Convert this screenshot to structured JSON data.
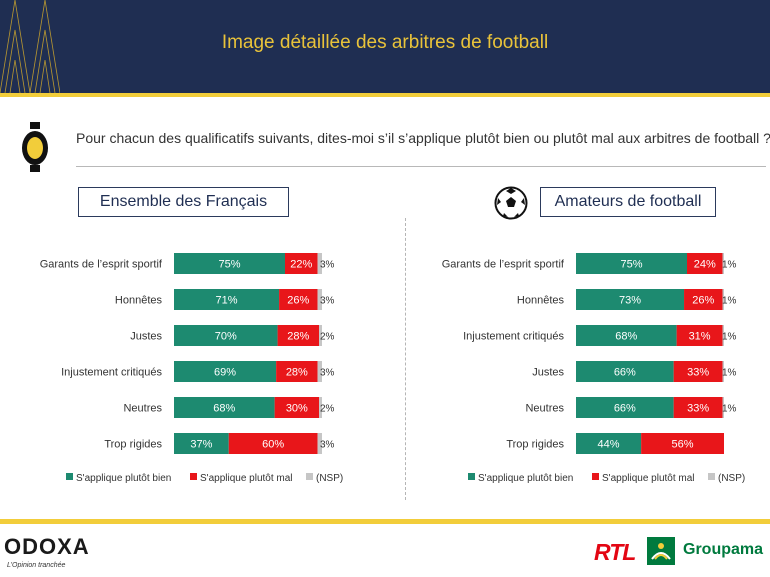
{
  "header": {
    "title": "Image détaillée des arbitres de football"
  },
  "question": "Pour chacun des qualificatifs suivants, dites-moi s’il s’applique plutôt bien ou plutôt mal aux arbitres de football ?",
  "brand": {
    "odoxa": "ODOXA",
    "odoxa_tagline": "L’Opinion tranchée",
    "rtl": "RTL",
    "groupama": "Groupama"
  },
  "colors": {
    "navy": "#1f2e52",
    "gold": "#f2cd3a",
    "green": "#1d8a70",
    "red": "#e8161a",
    "gray": "#c6c6c6"
  },
  "chart_data": [
    {
      "type": "bar",
      "orientation": "horizontal",
      "stacked": true,
      "title": "Ensemble des Français",
      "categories": [
        "Garants de l’esprit sportif",
        "Honnêtes",
        "Justes",
        "Injustement critiqués",
        "Neutres",
        "Trop rigides"
      ],
      "series": [
        {
          "name": "S'applique plutôt bien",
          "values": [
            75,
            71,
            70,
            69,
            68,
            37
          ]
        },
        {
          "name": "S'applique plutôt mal",
          "values": [
            22,
            26,
            28,
            28,
            30,
            60
          ]
        },
        {
          "name": "(NSP)",
          "values": [
            3,
            3,
            2,
            3,
            2,
            3
          ]
        }
      ],
      "unit": "%",
      "xlim": [
        0,
        100
      ],
      "legend_position": "bottom"
    },
    {
      "type": "bar",
      "orientation": "horizontal",
      "stacked": true,
      "title": "Amateurs de football",
      "categories": [
        "Garants de l’esprit sportif",
        "Honnêtes",
        "Injustement critiqués",
        "Justes",
        "Neutres",
        "Trop rigides"
      ],
      "series": [
        {
          "name": "S'applique plutôt bien",
          "values": [
            75,
            73,
            68,
            66,
            66,
            44
          ]
        },
        {
          "name": "S'applique plutôt mal",
          "values": [
            24,
            26,
            31,
            33,
            33,
            56
          ]
        },
        {
          "name": "(NSP)",
          "values": [
            1,
            1,
            1,
            1,
            1,
            0
          ]
        }
      ],
      "unit": "%",
      "xlim": [
        0,
        100
      ],
      "legend_position": "bottom"
    }
  ]
}
